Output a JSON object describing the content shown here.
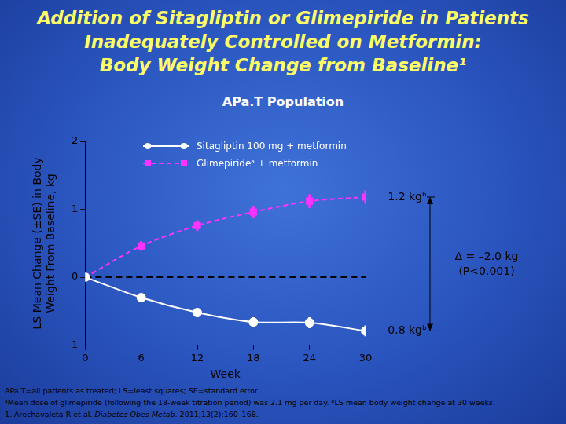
{
  "chart_data": {
    "type": "line",
    "title": [
      "Addition of Sitagliptin or Glimepiride in Patients",
      "Inadequately Controlled on Metformin:",
      "Body Weight Change from Baseline¹"
    ],
    "subtitle": "APa.T Population",
    "x_label": "Week",
    "y_label": [
      "LS Mean Change (±SE) in Body",
      "Weight From Baseline, kg"
    ],
    "x": [
      0,
      6,
      12,
      18,
      24,
      30
    ],
    "series": [
      {
        "name": "Sitagliptin 100 mg + metformin",
        "color": "#ffffff",
        "marker": "circle",
        "line_style": "solid",
        "values": [
          0,
          -0.3,
          -0.52,
          -0.66,
          -0.67,
          -0.79
        ],
        "errors": [
          0,
          0.06,
          0.07,
          0.07,
          0.08,
          0.08
        ],
        "end_label": "–0.8 kgᵇ"
      },
      {
        "name": "Glimepirideᵃ + metformin",
        "color": "#ff33ff",
        "marker": "square",
        "line_style": "dashed",
        "values": [
          0,
          0.46,
          0.76,
          0.96,
          1.12,
          1.18
        ],
        "errors": [
          0,
          0.07,
          0.08,
          0.09,
          0.1,
          0.1
        ],
        "end_label": "1.2 kgᵇ"
      }
    ],
    "difference": {
      "text": "Δ = –2.0 kg",
      "note": "(P<0.001)"
    },
    "baseline": 0,
    "xlim": [
      0,
      30
    ],
    "xticks": [
      0,
      6,
      12,
      18,
      24,
      30
    ],
    "ylim": [
      -1,
      2
    ],
    "yticks": [
      {
        "value": -1,
        "label": "–1"
      },
      0,
      1,
      2
    ],
    "grid": false,
    "legend": "top",
    "footnotes": [
      [
        {
          "text": "APa.T=all patients as treated; LS=least squares; SE=standard error."
        }
      ],
      [
        {
          "text": "ᵃMean dose of glimepiride (following the 18-week titration period) was 2.1 mg per day. ᵇLS mean body weight change at 30 weeks."
        }
      ],
      [
        {
          "text": "1. Arechavaleta R et al. "
        },
        {
          "text": "Diabetes Obes Metab",
          "italic": true
        },
        {
          "text": ". 2011;13(2):160–168."
        }
      ]
    ]
  }
}
